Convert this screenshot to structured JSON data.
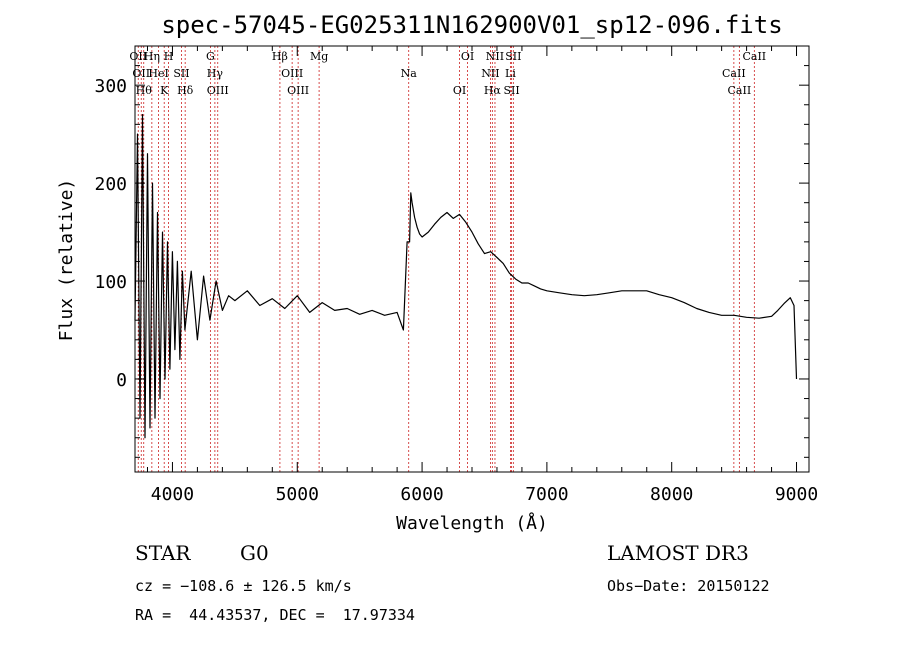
{
  "chart_data": {
    "type": "line",
    "title": "spec-57045-EG025311N162900V01_sp12-096.fits",
    "xlabel": "Wavelength (Å)",
    "ylabel": "Flux (relative)",
    "xlim": [
      3700,
      9100
    ],
    "ylim": [
      -95,
      340
    ],
    "x_ticks": [
      4000,
      5000,
      6000,
      7000,
      8000,
      9000
    ],
    "x_tick_labels": [
      "4000",
      "5000",
      "6000",
      "7000",
      "8000",
      "9000"
    ],
    "y_ticks": [
      0,
      100,
      200,
      300
    ],
    "y_tick_labels": [
      "0",
      "100",
      "200",
      "300"
    ],
    "series": [
      {
        "name": "flux",
        "x": [
          3700,
          3720,
          3740,
          3760,
          3780,
          3800,
          3820,
          3840,
          3860,
          3880,
          3900,
          3920,
          3940,
          3960,
          3980,
          4000,
          4020,
          4040,
          4060,
          4080,
          4100,
          4150,
          4200,
          4250,
          4300,
          4350,
          4400,
          4450,
          4500,
          4600,
          4700,
          4800,
          4900,
          5000,
          5100,
          5200,
          5300,
          5400,
          5500,
          5600,
          5700,
          5800,
          5850,
          5880,
          5900,
          5910,
          5920,
          5940,
          5960,
          5980,
          6000,
          6050,
          6100,
          6150,
          6200,
          6250,
          6300,
          6350,
          6400,
          6450,
          6500,
          6550,
          6600,
          6650,
          6700,
          6750,
          6800,
          6850,
          6900,
          6950,
          7000,
          7100,
          7200,
          7300,
          7400,
          7500,
          7600,
          7700,
          7800,
          7900,
          8000,
          8100,
          8200,
          8300,
          8400,
          8500,
          8600,
          8700,
          8800,
          8850,
          8900,
          8950,
          8980,
          9000
        ],
        "y": [
          60,
          250,
          -40,
          270,
          -60,
          230,
          -50,
          200,
          -40,
          170,
          -20,
          150,
          0,
          140,
          10,
          130,
          30,
          120,
          20,
          110,
          50,
          110,
          40,
          105,
          60,
          100,
          70,
          85,
          80,
          90,
          75,
          82,
          72,
          85,
          68,
          78,
          70,
          72,
          66,
          70,
          65,
          68,
          50,
          140,
          140,
          190,
          180,
          165,
          155,
          148,
          145,
          150,
          158,
          165,
          170,
          164,
          168,
          160,
          150,
          138,
          128,
          130,
          124,
          118,
          108,
          102,
          98,
          98,
          95,
          92,
          90,
          88,
          86,
          85,
          86,
          88,
          90,
          90,
          90,
          86,
          83,
          78,
          72,
          68,
          65,
          65,
          63,
          62,
          64,
          70,
          77,
          83,
          75,
          0
        ]
      }
    ],
    "lines": [
      {
        "x": 3726,
        "label": "OII"
      },
      {
        "x": 3750,
        "label": "OII"
      },
      {
        "x": 3770,
        "label": "Hθ"
      },
      {
        "x": 3835,
        "label": "Hη"
      },
      {
        "x": 3889,
        "label": "HeI"
      },
      {
        "x": 3934,
        "label": "K"
      },
      {
        "x": 3969,
        "label": "H"
      },
      {
        "x": 4072,
        "label": "SII"
      },
      {
        "x": 4102,
        "label": "Hδ"
      },
      {
        "x": 4304,
        "label": "G"
      },
      {
        "x": 4340,
        "label": "Hγ"
      },
      {
        "x": 4363,
        "label": "OIII"
      },
      {
        "x": 4861,
        "label": "Hβ"
      },
      {
        "x": 4959,
        "label": "OIII"
      },
      {
        "x": 5007,
        "label": "OIII"
      },
      {
        "x": 5175,
        "label": "Mg"
      },
      {
        "x": 5893,
        "label": "Na"
      },
      {
        "x": 6300,
        "label": "OI"
      },
      {
        "x": 6364,
        "label": "OI"
      },
      {
        "x": 6548,
        "label": "NII"
      },
      {
        "x": 6563,
        "label": "Hα"
      },
      {
        "x": 6584,
        "label": "NII"
      },
      {
        "x": 6708,
        "label": "Li"
      },
      {
        "x": 6717,
        "label": "SII"
      },
      {
        "x": 6731,
        "label": "SII"
      },
      {
        "x": 8498,
        "label": "CaII"
      },
      {
        "x": 8542,
        "label": "CaII"
      },
      {
        "x": 8662,
        "label": "CaII"
      }
    ]
  },
  "info": {
    "class": "STAR",
    "subclass": "G0",
    "survey": "LAMOST DR3",
    "cz": "cz = −108.6 ± 126.5 km/s",
    "obs_date": "Obs−Date: 20150122",
    "coords": "RA =  44.43537, DEC =  17.97334"
  },
  "colors": {
    "line": "#000000",
    "marker": "#cc2222"
  }
}
